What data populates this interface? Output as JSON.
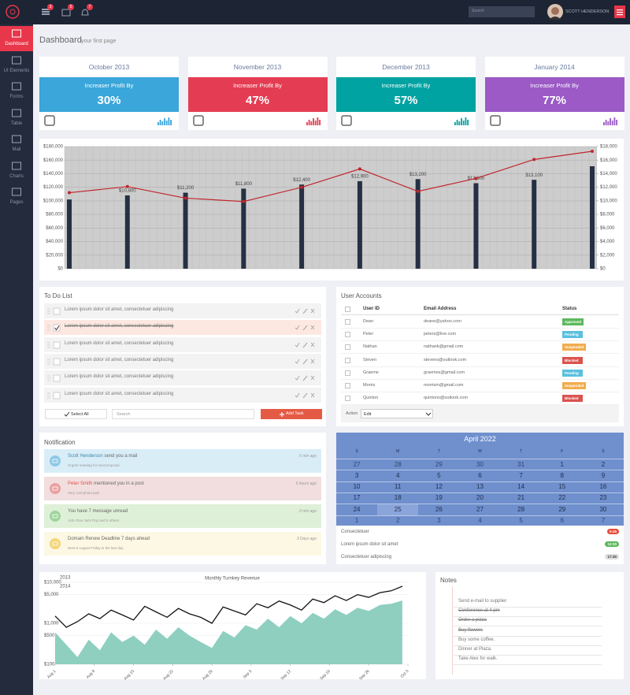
{
  "sidebar": {
    "items": [
      "Dashboard",
      "UI Elements",
      "Forms",
      "Table",
      "Mail",
      "Charts",
      "Pages"
    ]
  },
  "header": {
    "badges": [
      "3",
      "5",
      "7"
    ],
    "search_placeholder": "Search",
    "user": "SCOTT HENDERSON"
  },
  "page_title": "Dashboard",
  "page_subtitle": "your first page",
  "stats": [
    {
      "month": "October 2013",
      "label": "Increaser Profit By",
      "value": "30%",
      "color": "#3aa6da"
    },
    {
      "month": "November 2013",
      "label": "Increaser Profit By",
      "value": "47%",
      "color": "#e43d53"
    },
    {
      "month": "December 2013",
      "label": "Increaser Profit By",
      "value": "57%",
      "color": "#00a3a1"
    },
    {
      "month": "January 2014",
      "label": "Increaser Profit By",
      "value": "77%",
      "color": "#9b5ac6"
    }
  ],
  "bar_chart": {
    "type": "bar",
    "categories": [
      null,
      null,
      null,
      null,
      null,
      null,
      null,
      null,
      null,
      null
    ],
    "series": [
      {
        "type": "bar",
        "axis": "y2",
        "color": "#253044",
        "values": [
          10200,
          10800,
          11200,
          11800,
          12400,
          12900,
          13200,
          12600,
          13100,
          15100
        ],
        "value_labels": [
          null,
          "$10,800",
          "$11,200",
          "$11,800",
          "$12,400",
          "$12,900",
          "$13,200",
          "$12,600",
          "$13,100",
          null
        ]
      },
      {
        "type": "line",
        "color": "#c0262d",
        "values": [
          112000,
          121000,
          104000,
          99000,
          120000,
          147000,
          114000,
          133000,
          161000,
          173000
        ]
      }
    ],
    "ylim": [
      0,
      180000
    ],
    "yticks": [
      {
        "value": 0,
        "label": "$0"
      },
      {
        "value": 20000,
        "label": "$20,000"
      },
      {
        "value": 40000,
        "label": "$40,000"
      },
      {
        "value": 60000,
        "label": "$60,000"
      },
      {
        "value": 80000,
        "label": "$80,000"
      },
      {
        "value": 100000,
        "label": "$100,000"
      },
      {
        "value": 120000,
        "label": "$120,000"
      },
      {
        "value": 140000,
        "label": "$140,000"
      },
      {
        "value": 160000,
        "label": "$160,000"
      },
      {
        "value": 180000,
        "label": "$180,000"
      }
    ],
    "y2lim": [
      0,
      18000
    ],
    "y2ticks": [
      {
        "value": 0,
        "label": "$0"
      },
      {
        "value": 2000,
        "label": "$2,000"
      },
      {
        "value": 4000,
        "label": "$4,000"
      },
      {
        "value": 6000,
        "label": "$6,000"
      },
      {
        "value": 8000,
        "label": "$8,000"
      },
      {
        "value": 10000,
        "label": "$10,000"
      },
      {
        "value": 12000,
        "label": "$12,000"
      },
      {
        "value": 14000,
        "label": "$14,000"
      },
      {
        "value": 16000,
        "label": "$16,000"
      },
      {
        "value": 18000,
        "label": "$18,000"
      }
    ],
    "grid": true
  },
  "todo": {
    "title": "To Do List",
    "items": [
      {
        "text": "Lorem ipsum dolor sit amet, consectetuer adipiscing",
        "done": false
      },
      {
        "text": "Lorem ipsum dolor sit amet, consectetuer adipiscing",
        "done": true
      },
      {
        "text": "Lorem ipsum dolor sit amet, consectetuer adipiscing",
        "done": false
      },
      {
        "text": "Lorem ipsum dolor sit amet, consectetuer adipiscing",
        "done": false
      },
      {
        "text": "Lorem ipsum dolor sit amet, consectetuer adipiscing",
        "done": false
      },
      {
        "text": "Lorem ipsum dolor sit amet, consectetuer adipiscing",
        "done": false
      }
    ],
    "select_all": "Select All",
    "search_placeholder": "Search",
    "add": "Add Task"
  },
  "users": {
    "title": "User Accounts",
    "columns": [
      "User ID",
      "Email Address",
      "Status"
    ],
    "rows": [
      [
        "Dean",
        "deane@yahoo.com",
        "Approved"
      ],
      [
        "Peter",
        "peters@live.com",
        "Pending"
      ],
      [
        "Nathan",
        "nathank@gmail.com",
        "Suspended"
      ],
      [
        "Steven",
        "stevens@outlook.com",
        "Blocked"
      ],
      [
        "Graeme",
        "graemes@gmail.com",
        "Pending"
      ],
      [
        "Morris",
        "morrism@gmail.com",
        "Suspended"
      ],
      [
        "Quinton",
        "quintons@outlook.com",
        "Blocked"
      ]
    ],
    "status_colors": {
      "Approved": "#5cb85c",
      "Pending": "#5bc0de",
      "Suspended": "#f0ad4e",
      "Blocked": "#d9534f"
    },
    "action_label": "Action",
    "action_value": "Edit"
  },
  "notifications": {
    "title": "Notification",
    "items": [
      {
        "name": "Scott Henderson",
        "text": "send you a mail",
        "sub": "Urgent meeting for next proposal",
        "time": "5 min ago",
        "bg": "#d9edf7",
        "icon": "#8ec8e6",
        "accent": "#3a87ad"
      },
      {
        "name": "Peter Smith",
        "text": "mentioned you in a post",
        "sub": "Very cool photo jack",
        "time": "6 hours ago",
        "bg": "#f2dede",
        "icon": "#eaa0a0",
        "accent": "#d9534f"
      },
      {
        "text": "You have 7 message unread",
        "sub": "John Doe Jack Pop and 5 others",
        "time": "2 min ago",
        "bg": "#dff0d8",
        "icon": "#9fd49b"
      },
      {
        "text": "Domain Renew Deadline 7 days ahead",
        "sub": "Next 5 August Friday is the last day",
        "time": "3 Days ago",
        "bg": "#fcf8e3",
        "icon": "#f3d57a"
      }
    ]
  },
  "calendar": {
    "title": "April 2022",
    "weekdays": [
      "S",
      "M",
      "T",
      "W",
      "T",
      "F",
      "S"
    ],
    "weeks": [
      [
        27,
        28,
        29,
        30,
        31,
        1,
        2
      ],
      [
        3,
        4,
        5,
        6,
        7,
        8,
        9
      ],
      [
        10,
        11,
        12,
        13,
        14,
        15,
        16
      ],
      [
        17,
        18,
        19,
        20,
        21,
        22,
        23
      ],
      [
        24,
        25,
        26,
        27,
        28,
        29,
        30
      ],
      [
        1,
        2,
        3,
        4,
        5,
        6,
        7
      ]
    ],
    "events": [
      {
        "text": "Consectetuer",
        "time": "5:45",
        "color": "#e74c3c"
      },
      {
        "text": "Lorem ipsum dolor sit amet",
        "time": "12:30",
        "color": "#5cb85c"
      },
      {
        "text": "Consectetuer adipiscing",
        "time": "17:30",
        "color": "#dddddd"
      }
    ]
  },
  "revenue_chart": {
    "type": "line",
    "title": "Monthly Turnkey Revenue",
    "log_scale": true,
    "x": [
      0,
      2,
      4,
      6,
      8,
      10,
      12,
      14,
      16,
      18,
      20,
      22,
      24,
      26,
      28,
      30,
      32,
      34,
      36,
      38,
      40,
      42,
      44,
      46,
      48,
      50,
      52,
      54,
      56,
      58,
      60,
      62
    ],
    "xlim": [
      0,
      63
    ],
    "xticks": [
      {
        "value": 0,
        "label": "Aug 1"
      },
      {
        "value": 7,
        "label": "Aug 8"
      },
      {
        "value": 14,
        "label": "Aug 15"
      },
      {
        "value": 21,
        "label": "Aug 22"
      },
      {
        "value": 28,
        "label": "Aug 29"
      },
      {
        "value": 35,
        "label": "Sep 5"
      },
      {
        "value": 42,
        "label": "Sep 12"
      },
      {
        "value": 49,
        "label": "Sep 19"
      },
      {
        "value": 56,
        "label": "Sep 26"
      },
      {
        "value": 63,
        "label": "Oct 3"
      }
    ],
    "ylim": [
      100,
      10000
    ],
    "yticks": [
      {
        "value": 100,
        "label": "$100"
      },
      {
        "value": 500,
        "label": "$500"
      },
      {
        "value": 1000,
        "label": "$1,000"
      },
      {
        "value": 5000,
        "label": "$5,000"
      },
      {
        "value": 10000,
        "label": "$10,000"
      }
    ],
    "series": [
      {
        "name": "2013",
        "color": "#111111",
        "values": [
          1500,
          800,
          1100,
          1700,
          1300,
          2100,
          1600,
          1200,
          2600,
          1900,
          1400,
          2300,
          1700,
          1400,
          1000,
          2500,
          2000,
          1600,
          3000,
          2400,
          3500,
          2800,
          2100,
          3900,
          3200,
          4700,
          3600,
          5000,
          4300,
          5600,
          6200,
          8000
        ]
      },
      {
        "name": "2014",
        "color": "#8ecfc0",
        "fill": true,
        "values": [
          600,
          300,
          150,
          400,
          220,
          600,
          350,
          500,
          300,
          700,
          420,
          800,
          500,
          350,
          250,
          650,
          450,
          900,
          700,
          1300,
          800,
          1500,
          1000,
          1800,
          1300,
          2200,
          1600,
          2400,
          2000,
          2800,
          3000,
          3600
        ]
      }
    ]
  },
  "notes": {
    "title": "Notes",
    "items": [
      {
        "text": "Send e-mail to supplier",
        "done": false
      },
      {
        "text": "Conference at 4 pm",
        "done": true
      },
      {
        "text": "Order a pizza",
        "done": true
      },
      {
        "text": "Buy flowers",
        "done": true
      },
      {
        "text": "Buy some coffee.",
        "done": false
      },
      {
        "text": "Dinner at Plaza.",
        "done": false
      },
      {
        "text": "Take Alex for walk.",
        "done": false
      }
    ]
  }
}
